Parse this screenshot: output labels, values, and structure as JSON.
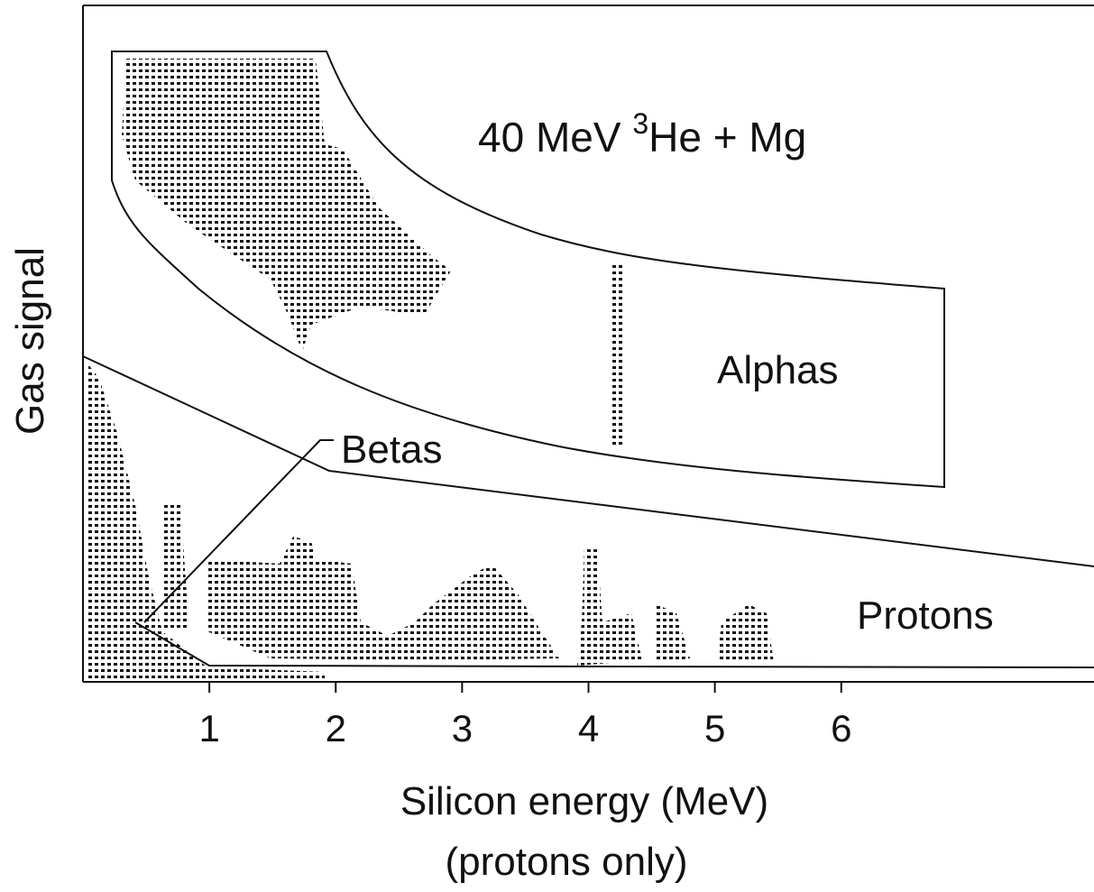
{
  "chart_data": {
    "type": "scatter",
    "title_parts": [
      "40 MeV ",
      "3",
      "He + Mg"
    ],
    "xlabel_lines": [
      "Silicon energy (MeV)",
      "(protons only)"
    ],
    "ylabel": "Gas signal",
    "xlim": [
      0,
      8
    ],
    "xticks": [
      1,
      2,
      3,
      4,
      5,
      6
    ],
    "annotations": [
      "Alphas",
      "Betas",
      "Protons"
    ]
  }
}
